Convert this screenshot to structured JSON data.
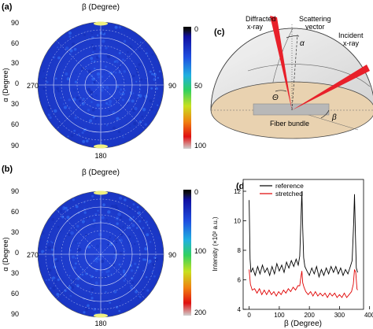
{
  "panels": {
    "a": {
      "label": "(a)",
      "top_label": "β (Degree)",
      "y_label": "α (Degree)",
      "left_angle": "270",
      "right_angle": "90",
      "bottom_angle": "180",
      "y_ticks": [
        "90",
        "60",
        "30",
        "0",
        "30",
        "60",
        "90"
      ],
      "colorbar_ticks": [
        "0",
        "50",
        "100"
      ]
    },
    "b": {
      "label": "(b)",
      "top_label": "β (Degree)",
      "y_label": "α (Degree)",
      "left_angle": "270",
      "right_angle": "90",
      "bottom_angle": "180",
      "y_ticks": [
        "90",
        "60",
        "30",
        "0",
        "30",
        "60",
        "90"
      ],
      "colorbar_ticks": [
        "0",
        "100",
        "200"
      ]
    },
    "c": {
      "label": "(c)",
      "diffracted": "Diffracted",
      "diffracted2": "x-ray",
      "scattering": "Scattering",
      "scattering2": "vector",
      "incident": "Incident",
      "incident2": "x-ray",
      "alpha": "α",
      "theta": "Θ",
      "beta": "β",
      "fiber": "Fiber bundle"
    },
    "d": {
      "label": "(d)",
      "ylabel": "Intensity (×10² a.u.)",
      "xlabel": "β (Degree)"
    }
  },
  "colors": {
    "reference": "#000000",
    "stretched": "#e00000",
    "polar_fill": "#1f3cd0",
    "dome_base": "#e9d2b0",
    "beam": "#e8202a"
  },
  "chart_data": [
    {
      "type": "heatmap",
      "title": "",
      "projection": "polar",
      "colorbar_range": [
        0,
        100
      ],
      "dominant_value": "low (~10-20)",
      "peaks_at_beta": [
        0,
        180
      ]
    },
    {
      "type": "heatmap",
      "title": "",
      "projection": "polar",
      "colorbar_range": [
        0,
        200
      ],
      "dominant_value": "low (~10-20)",
      "peaks_at_beta": [
        0,
        180
      ]
    },
    {
      "type": "line",
      "xlabel": "β (Degree)",
      "ylabel": "Intensity (×10² a.u.)",
      "xlim": [
        -20,
        380
      ],
      "ylim": [
        4,
        12.8
      ],
      "x_ticks": [
        0,
        100,
        200,
        300,
        400
      ],
      "y_ticks": [
        4,
        6,
        8,
        10,
        12
      ],
      "legend_position": "top-right",
      "series": [
        {
          "name": "reference",
          "color": "#000000",
          "points": [
            [
              0,
              11.4
            ],
            [
              3,
              7.4
            ],
            [
              6,
              6.5
            ],
            [
              12,
              6.8
            ],
            [
              20,
              6.3
            ],
            [
              28,
              6.9
            ],
            [
              36,
              6.4
            ],
            [
              44,
              7.0
            ],
            [
              52,
              6.5
            ],
            [
              60,
              6.8
            ],
            [
              68,
              6.3
            ],
            [
              76,
              6.9
            ],
            [
              84,
              6.4
            ],
            [
              92,
              7.1
            ],
            [
              100,
              6.6
            ],
            [
              108,
              7.0
            ],
            [
              116,
              6.5
            ],
            [
              124,
              7.2
            ],
            [
              132,
              6.8
            ],
            [
              140,
              7.3
            ],
            [
              148,
              6.9
            ],
            [
              156,
              7.4
            ],
            [
              163,
              7.0
            ],
            [
              168,
              7.6
            ],
            [
              172,
              10.0
            ],
            [
              175,
              12.0
            ],
            [
              178,
              9.5
            ],
            [
              181,
              7.5
            ],
            [
              185,
              6.9
            ],
            [
              192,
              6.6
            ],
            [
              200,
              6.3
            ],
            [
              208,
              6.8
            ],
            [
              216,
              6.4
            ],
            [
              224,
              6.9
            ],
            [
              232,
              6.2
            ],
            [
              240,
              6.7
            ],
            [
              248,
              6.3
            ],
            [
              256,
              6.8
            ],
            [
              264,
              6.4
            ],
            [
              272,
              6.9
            ],
            [
              280,
              6.5
            ],
            [
              288,
              6.9
            ],
            [
              296,
              6.4
            ],
            [
              304,
              6.8
            ],
            [
              312,
              6.3
            ],
            [
              320,
              6.7
            ],
            [
              328,
              6.4
            ],
            [
              336,
              6.9
            ],
            [
              342,
              7.3
            ],
            [
              347,
              9.8
            ],
            [
              350,
              11.8
            ],
            [
              353,
              9.0
            ],
            [
              356,
              6.8
            ],
            [
              360,
              6.5
            ]
          ]
        },
        {
          "name": "stretched",
          "color": "#e00000",
          "points": [
            [
              0,
              6.7
            ],
            [
              4,
              5.7
            ],
            [
              10,
              5.3
            ],
            [
              18,
              5.4
            ],
            [
              26,
              5.1
            ],
            [
              34,
              5.4
            ],
            [
              42,
              5.0
            ],
            [
              50,
              5.3
            ],
            [
              58,
              5.0
            ],
            [
              66,
              5.3
            ],
            [
              74,
              5.0
            ],
            [
              82,
              5.2
            ],
            [
              90,
              4.9
            ],
            [
              98,
              5.2
            ],
            [
              106,
              5.0
            ],
            [
              114,
              5.3
            ],
            [
              122,
              5.1
            ],
            [
              130,
              5.4
            ],
            [
              138,
              5.2
            ],
            [
              146,
              5.5
            ],
            [
              154,
              5.3
            ],
            [
              162,
              5.6
            ],
            [
              168,
              5.6
            ],
            [
              172,
              6.2
            ],
            [
              175,
              6.6
            ],
            [
              178,
              5.8
            ],
            [
              182,
              5.5
            ],
            [
              188,
              5.2
            ],
            [
              196,
              5.0
            ],
            [
              204,
              5.2
            ],
            [
              212,
              4.9
            ],
            [
              220,
              5.2
            ],
            [
              228,
              4.9
            ],
            [
              236,
              5.1
            ],
            [
              244,
              4.9
            ],
            [
              252,
              5.1
            ],
            [
              260,
              4.8
            ],
            [
              268,
              5.1
            ],
            [
              276,
              4.9
            ],
            [
              284,
              5.1
            ],
            [
              292,
              4.8
            ],
            [
              300,
              5.0
            ],
            [
              308,
              4.8
            ],
            [
              316,
              5.1
            ],
            [
              324,
              4.8
            ],
            [
              332,
              5.0
            ],
            [
              340,
              5.2
            ],
            [
              346,
              5.7
            ],
            [
              350,
              6.7
            ],
            [
              354,
              6.5
            ],
            [
              358,
              5.4
            ],
            [
              360,
              5.3
            ]
          ]
        }
      ]
    }
  ]
}
